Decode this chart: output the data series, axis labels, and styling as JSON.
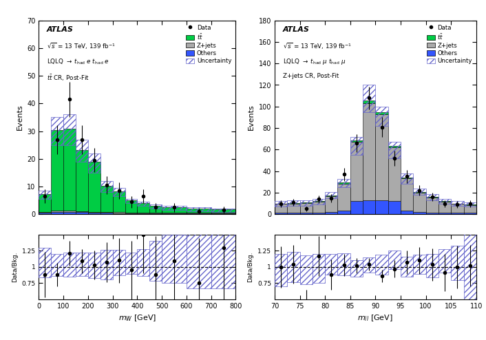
{
  "left": {
    "xlabel": "m_W [GeV]",
    "ylabel": "Events",
    "xlim": [
      0,
      800
    ],
    "ylim_main": [
      0,
      70
    ],
    "ylim_ratio": [
      0.5,
      1.5
    ],
    "yticks_main": [
      0,
      10,
      20,
      30,
      40,
      50,
      60,
      70
    ],
    "xticks": [
      0,
      100,
      200,
      300,
      400,
      500,
      600,
      700,
      800
    ],
    "bin_edges": [
      0,
      50,
      100,
      150,
      200,
      250,
      300,
      350,
      400,
      450,
      500,
      600,
      700,
      800
    ],
    "tt_values": [
      6.5,
      29.0,
      29.5,
      22.0,
      18.0,
      9.5,
      7.5,
      4.5,
      3.5,
      2.5,
      2.0,
      1.5,
      1.2
    ],
    "zjets_values": [
      0.3,
      0.5,
      0.5,
      0.4,
      0.3,
      0.3,
      0.3,
      0.2,
      0.2,
      0.2,
      0.2,
      0.2,
      0.2
    ],
    "others_values": [
      0.5,
      0.8,
      0.8,
      0.7,
      0.6,
      0.5,
      0.4,
      0.3,
      0.3,
      0.3,
      0.3,
      0.3,
      0.3
    ],
    "data_x": [
      25,
      75,
      125,
      175,
      225,
      275,
      325,
      375,
      425,
      475,
      550,
      650,
      750
    ],
    "data_y": [
      6.5,
      27.0,
      41.5,
      27.0,
      19.5,
      10.5,
      8.5,
      4.5,
      6.5,
      2.5,
      2.5,
      1.0,
      1.5
    ],
    "data_yerr": [
      2.5,
      5.2,
      6.4,
      5.2,
      4.4,
      3.2,
      2.9,
      2.1,
      2.5,
      1.6,
      1.6,
      1.0,
      1.2
    ],
    "unc_up": [
      8.5,
      35.0,
      36.0,
      27.0,
      22.0,
      12.0,
      9.5,
      5.5,
      4.5,
      3.5,
      3.0,
      2.5,
      2.0
    ],
    "unc_dn": [
      5.5,
      25.0,
      25.0,
      19.0,
      15.0,
      8.0,
      6.5,
      4.0,
      3.0,
      2.0,
      1.5,
      1.0,
      0.8
    ],
    "ratio_data_y": [
      0.88,
      0.88,
      1.21,
      1.09,
      1.03,
      1.07,
      1.1,
      0.95,
      1.5,
      0.88,
      1.09,
      0.75,
      1.3
    ],
    "ratio_data_yerr": [
      0.35,
      0.18,
      0.19,
      0.19,
      0.22,
      0.31,
      0.35,
      0.45,
      0.6,
      0.6,
      0.6,
      0.7,
      0.9
    ],
    "ratio_unc_up": [
      1.3,
      1.2,
      1.22,
      1.22,
      1.22,
      1.26,
      1.26,
      1.22,
      1.28,
      1.4,
      1.5,
      1.67,
      1.67
    ],
    "ratio_unc_dn": [
      0.84,
      0.86,
      0.85,
      0.86,
      0.83,
      0.81,
      0.87,
      0.89,
      0.86,
      0.79,
      0.75,
      0.67,
      0.67
    ],
    "atlas_label": "ATLAS",
    "info_line1": "$\\sqrt{s}$ = 13 TeV, 139 fb$^{-1}$",
    "info_line2": "LQLQ $\\rightarrow$ $t_\\mathrm{had}$ $e$ $t_\\mathrm{had}$ $e$",
    "info_line3": "$t\\bar{t}$ CR, Post-Fit",
    "xlabel_latex": "$m_W$ [GeV]"
  },
  "right": {
    "xlabel": "m_ll [GeV]",
    "ylabel": "Events",
    "xlim": [
      70,
      110
    ],
    "ylim_main": [
      0,
      180
    ],
    "ylim_ratio": [
      0.5,
      1.5
    ],
    "yticks_main": [
      0,
      20,
      40,
      60,
      80,
      100,
      120,
      140,
      160,
      180
    ],
    "xticks": [
      70,
      75,
      80,
      85,
      90,
      95,
      100,
      105,
      110
    ],
    "bin_edges": [
      70,
      72.5,
      75,
      77.5,
      80,
      82.5,
      85,
      87.5,
      90,
      92.5,
      95,
      97.5,
      100,
      102.5,
      105,
      107.5,
      110
    ],
    "tt_values": [
      0.5,
      0.5,
      0.5,
      0.5,
      0.5,
      1.0,
      1.5,
      2.5,
      2.0,
      1.5,
      0.5,
      0.5,
      0.5,
      0.5,
      0.5,
      0.5
    ],
    "zjets_values": [
      8.0,
      8.5,
      9.0,
      10.0,
      15.0,
      25.0,
      55.0,
      90.0,
      80.0,
      50.0,
      30.0,
      18.0,
      14.0,
      10.0,
      8.0,
      7.0
    ],
    "others_values": [
      1.5,
      1.5,
      1.5,
      1.5,
      2.0,
      3.5,
      12.0,
      13.0,
      13.0,
      12.0,
      3.5,
      2.0,
      1.5,
      1.5,
      1.5,
      1.5
    ],
    "data_x": [
      71.25,
      73.75,
      76.25,
      78.75,
      81.25,
      83.75,
      86.25,
      88.75,
      91.25,
      93.75,
      96.25,
      98.75,
      101.25,
      103.75,
      106.25,
      108.75
    ],
    "data_y": [
      10.0,
      11.0,
      5.0,
      14.0,
      15.0,
      37.0,
      66.0,
      108.0,
      81.0,
      52.0,
      35.0,
      22.0,
      16.0,
      10.0,
      9.0,
      10.0
    ],
    "data_yerr": [
      3.2,
      3.3,
      2.2,
      3.7,
      3.9,
      6.1,
      8.1,
      10.4,
      9.0,
      7.2,
      5.9,
      4.7,
      4.0,
      3.2,
      3.0,
      3.2
    ],
    "unc_up": [
      12.0,
      13.0,
      13.0,
      14.5,
      20.5,
      32.5,
      72.0,
      120.0,
      100.0,
      67.0,
      38.0,
      24.0,
      18.5,
      14.0,
      12.0,
      11.0
    ],
    "unc_dn": [
      7.0,
      8.0,
      8.0,
      9.0,
      15.0,
      25.0,
      55.0,
      95.0,
      82.0,
      52.0,
      28.0,
      18.0,
      13.0,
      10.0,
      8.0,
      7.0
    ],
    "ratio_data_y": [
      1.0,
      1.04,
      0.45,
      1.17,
      0.88,
      1.03,
      1.02,
      1.04,
      0.86,
      0.97,
      1.07,
      1.1,
      1.04,
      0.91,
      1.0,
      1.02
    ],
    "ratio_data_yerr": [
      0.32,
      0.3,
      0.2,
      0.31,
      0.23,
      0.17,
      0.12,
      0.1,
      0.1,
      0.13,
      0.18,
      0.21,
      0.25,
      0.29,
      0.33,
      0.32
    ],
    "ratio_unc_up": [
      1.2,
      1.23,
      1.18,
      1.2,
      1.2,
      1.21,
      1.1,
      1.15,
      1.19,
      1.25,
      1.16,
      1.19,
      1.2,
      1.27,
      1.33,
      1.57
    ],
    "ratio_unc_dn": [
      0.7,
      0.76,
      0.73,
      0.75,
      0.88,
      0.87,
      0.85,
      0.91,
      0.88,
      0.97,
      0.85,
      0.89,
      0.84,
      0.91,
      0.8,
      0.43
    ],
    "atlas_label": "ATLAS",
    "info_line1": "$\\sqrt{s}$ = 13 TeV, 139 fb$^{-1}$",
    "info_line2": "LQLQ $\\rightarrow$ $t_\\mathrm{had}$ $\\mu$ $t_\\mathrm{had}$ $\\mu$",
    "info_line3": "Z+jets CR, Post-Fit",
    "xlabel_latex": "$m_{ll}$ [GeV]"
  },
  "colors": {
    "tt": "#00cc44",
    "zjets": "#aaaaaa",
    "others": "#3355ff",
    "uncertainty_hatch": "#6666cc",
    "data": "black"
  }
}
